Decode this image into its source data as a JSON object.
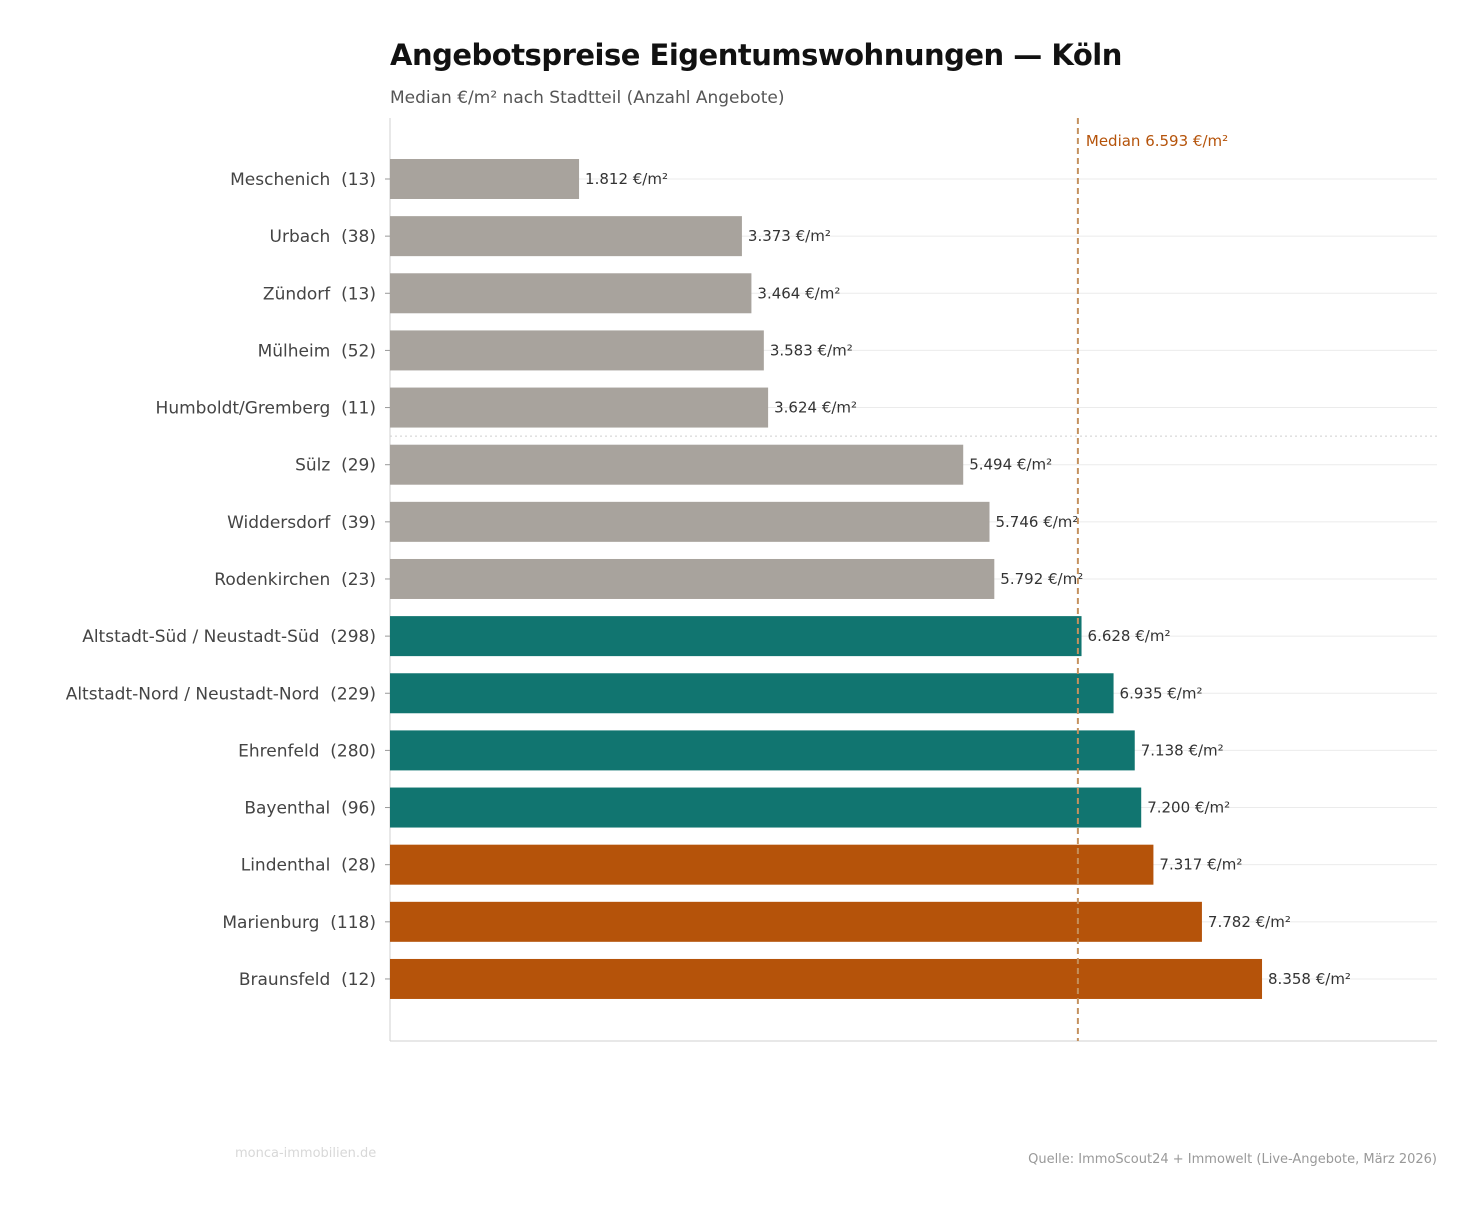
{
  "title": "Angebotspreise Eigentumswohnungen — Köln",
  "subtitle": "Median €/m² nach Stadtteil (Anzahl Angebote)",
  "brand": "monca-immobilien.de",
  "source": "Quelle: ImmoScout24 + Immowelt (Live-Angebote, März 2026)",
  "chart_data": {
    "type": "bar",
    "orientation": "horizontal",
    "title": "Angebotspreise Eigentumswohnungen — Köln",
    "subtitle": "Median €/m² nach Stadtteil (Anzahl Angebote)",
    "categories": [
      "Meschenich  (13)",
      "Urbach  (38)",
      "Zündorf  (13)",
      "Mülheim  (52)",
      "Humboldt/Gremberg  (11)",
      "Sülz  (29)",
      "Widdersdorf  (39)",
      "Rodenkirchen  (23)",
      "Altstadt-Süd / Neustadt-Süd  (298)",
      "Altstadt-Nord / Neustadt-Nord  (229)",
      "Ehrenfeld  (280)",
      "Bayenthal  (96)",
      "Lindenthal  (28)",
      "Marienburg  (118)",
      "Braunsfeld  (12)"
    ],
    "values": [
      1812,
      3373,
      3464,
      3583,
      3624,
      5494,
      5746,
      5792,
      6628,
      6935,
      7138,
      7200,
      7317,
      7782,
      8358
    ],
    "data_labels": [
      "1.812 €/m²",
      "3.373 €/m²",
      "3.464 €/m²",
      "3.583 €/m²",
      "3.624 €/m²",
      "5.494 €/m²",
      "5.746 €/m²",
      "5.792 €/m²",
      "6.628 €/m²",
      "6.935 €/m²",
      "7.138 €/m²",
      "7.200 €/m²",
      "7.317 €/m²",
      "7.782 €/m²",
      "8.358 €/m²"
    ],
    "bar_colors": [
      "#a8a39d",
      "#a8a39d",
      "#a8a39d",
      "#a8a39d",
      "#a8a39d",
      "#a8a39d",
      "#a8a39d",
      "#a8a39d",
      "#117570",
      "#117570",
      "#117570",
      "#117570",
      "#b5530a",
      "#b5530a",
      "#b5530a"
    ],
    "separator_after_index": 4,
    "reference_line": {
      "value": 6593,
      "label": "Median 6.593 €/m²",
      "color": "#c4915e",
      "label_color": "#b5530a"
    },
    "xlim": [
      0,
      10035
    ],
    "xaxis_ticks_shown": false,
    "grid": "horizontal"
  }
}
